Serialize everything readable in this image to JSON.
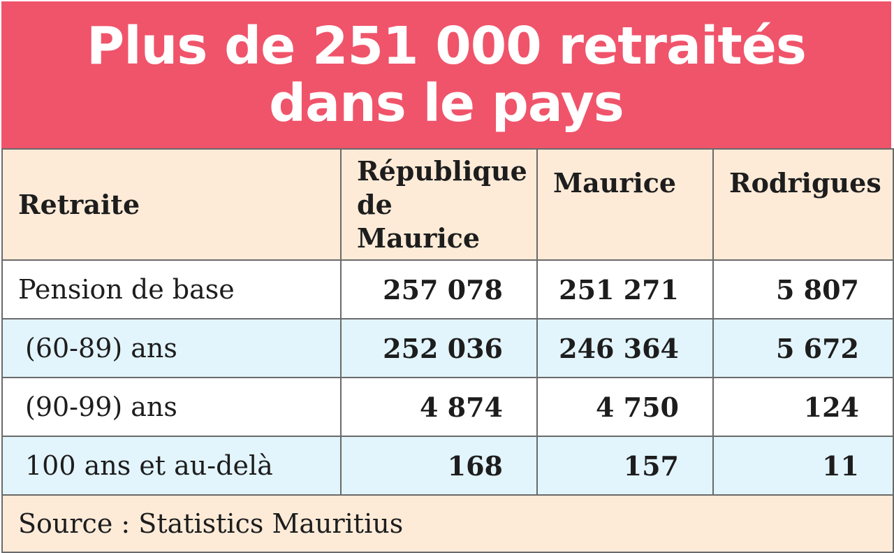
{
  "title": {
    "line1": "Plus de 251 000 retraités",
    "line2": "dans le pays"
  },
  "colors": {
    "title_bg": "#f0546a",
    "header_bg": "#fdebd8",
    "alt_row_bg": "#e2f4fc"
  },
  "table": {
    "headers": [
      "Retraite",
      "République de Maurice",
      "Maurice",
      "Rodrigues"
    ],
    "rows": [
      {
        "label": "Pension de base",
        "values": [
          "257 078",
          "251 271",
          "5 807"
        ]
      },
      {
        "label": "(60-89) ans",
        "values": [
          "252 036",
          "246 364",
          "5 672"
        ]
      },
      {
        "label": "(90-99) ans",
        "values": [
          "4 874",
          "4 750",
          "124"
        ]
      },
      {
        "label": "100 ans et au-delà",
        "values": [
          "168",
          "157",
          "11"
        ]
      }
    ]
  },
  "source": "Source : Statistics Mauritius"
}
